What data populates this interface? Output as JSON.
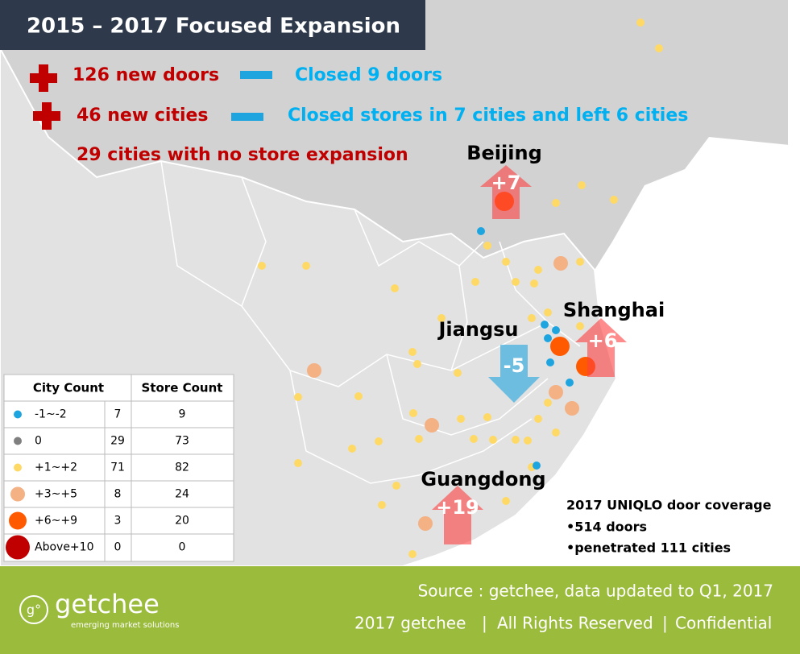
{
  "title": "2015 – 2017 Focused Expansion",
  "highlights": {
    "new_doors": "126 new doors",
    "new_cities": "46 new cities",
    "no_expansion": "29 cities with no store expansion",
    "closed_doors": "Closed 9 doors",
    "closed_cities": "Closed stores in 7 cities and left 6 cities"
  },
  "regions": [
    {
      "name": "Beijing",
      "change": "+7"
    },
    {
      "name": "Shanghai",
      "change": "+6"
    },
    {
      "name": "Jiangsu",
      "change": "-5"
    },
    {
      "name": "Guangdong",
      "change": "+19"
    }
  ],
  "legend": {
    "headers": [
      "City Count",
      "Store Count"
    ],
    "rows": [
      {
        "range": "-1~-2",
        "cities": 7,
        "stores": 9
      },
      {
        "range": "0",
        "cities": 29,
        "stores": 73
      },
      {
        "range": "+1~+2",
        "cities": 71,
        "stores": 82
      },
      {
        "range": "+3~+5",
        "cities": 8,
        "stores": 24
      },
      {
        "range": "+6~+9",
        "cities": 3,
        "stores": 20
      },
      {
        "range": "Above+10",
        "cities": 0,
        "stores": 0
      }
    ]
  },
  "coverage": {
    "title": "2017 UNIQLO door coverage",
    "items": [
      "•514 doors",
      "•penetrated 111 cities"
    ]
  },
  "footer": {
    "source": "Source : getchee, data updated to Q1, 2017",
    "copyright": "2017   getchee",
    "rights": "All Rights Reserved",
    "confidential": "Confidential",
    "logo": "getchee",
    "tagline": "emerging market solutions"
  }
}
